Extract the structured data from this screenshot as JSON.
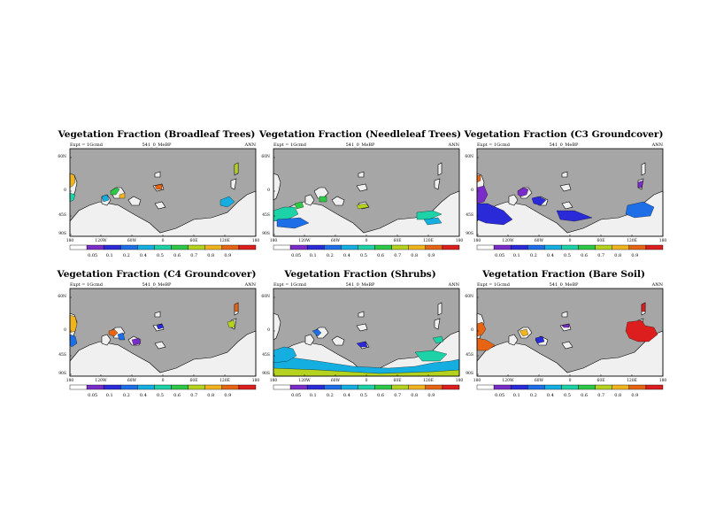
{
  "chart_data": [
    {
      "type": "heatmap",
      "title": "Vegetation Fraction (Broadleaf Trees)",
      "left_label": "Expt = 1Gcmd",
      "center_label": "541_0_MeBP",
      "right_label": "ANN",
      "lat_ticks": [
        "60N",
        "0",
        "45S",
        "90S"
      ],
      "lon_ticks": [
        "180",
        "120W",
        "60W",
        "0",
        "60E",
        "120E",
        "180"
      ],
      "colorbar": [
        "0.05",
        "0.1",
        "0.2",
        "0.4",
        "0.5",
        "0.6",
        "0.7",
        "0.8",
        "0.9"
      ]
    },
    {
      "type": "heatmap",
      "title": "Vegetation Fraction (Needleleaf Trees)",
      "left_label": "Expt = 1Gcmd",
      "center_label": "541_0_MeBP",
      "right_label": "ANN",
      "lat_ticks": [
        "60N",
        "0",
        "45S",
        "90S"
      ],
      "lon_ticks": [
        "180",
        "120W",
        "60W",
        "0",
        "60E",
        "120E",
        "180"
      ],
      "colorbar": [
        "0.05",
        "0.1",
        "0.2",
        "0.4",
        "0.5",
        "0.6",
        "0.7",
        "0.8",
        "0.9"
      ]
    },
    {
      "type": "heatmap",
      "title": "Vegetation Fraction (C3 Groundcover)",
      "left_label": "Expt = 1Gcmd",
      "center_label": "541_0_MeBP",
      "right_label": "ANN",
      "lat_ticks": [
        "60N",
        "0",
        "45S",
        "90S"
      ],
      "lon_ticks": [
        "180",
        "120W",
        "60W",
        "0",
        "60E",
        "120E",
        "180"
      ],
      "colorbar": [
        "0.05",
        "0.1",
        "0.2",
        "0.4",
        "0.5",
        "0.6",
        "0.7",
        "0.8",
        "0.9"
      ]
    },
    {
      "type": "heatmap",
      "title": "Vegetation Fraction (C4 Groundcover)",
      "left_label": "Expt = 1Gcmd",
      "center_label": "541_0_MeBP",
      "right_label": "ANN",
      "lat_ticks": [
        "60N",
        "0",
        "45S",
        "90S"
      ],
      "lon_ticks": [
        "180",
        "120W",
        "60W",
        "0",
        "60E",
        "120E",
        "180"
      ],
      "colorbar": [
        "0.05",
        "0.1",
        "0.2",
        "0.4",
        "0.5",
        "0.6",
        "0.7",
        "0.8",
        "0.9"
      ]
    },
    {
      "type": "heatmap",
      "title": "Vegetation Fraction (Shrubs)",
      "left_label": "Expt = 1Gcmd",
      "center_label": "541_0_MeBP",
      "right_label": "ANN",
      "lat_ticks": [
        "60N",
        "0",
        "45S",
        "90S"
      ],
      "lon_ticks": [
        "180",
        "120W",
        "60W",
        "0",
        "60E",
        "120E",
        "180"
      ],
      "colorbar": [
        "0.05",
        "0.1",
        "0.2",
        "0.4",
        "0.5",
        "0.6",
        "0.7",
        "0.8",
        "0.9"
      ]
    },
    {
      "type": "heatmap",
      "title": "Vegetation Fraction (Bare Soil)",
      "left_label": "Expt = 1Gcmd",
      "center_label": "541_0_MeBP",
      "right_label": "ANN",
      "lat_ticks": [
        "60N",
        "0",
        "45S",
        "90S"
      ],
      "lon_ticks": [
        "180",
        "120W",
        "60W",
        "0",
        "60E",
        "120E",
        "180"
      ],
      "colorbar": [
        "0.05",
        "0.1",
        "0.2",
        "0.4",
        "0.5",
        "0.6",
        "0.7",
        "0.8",
        "0.9"
      ]
    }
  ],
  "colors": {
    "ocean": "#a6a6a6",
    "land": "#f0f0f0",
    "scale": [
      "#ffffff",
      "#7a2cc8",
      "#2a2ad8",
      "#1e6ee8",
      "#14aee0",
      "#1ed2a8",
      "#2cc846",
      "#b4d21e",
      "#f0b41e",
      "#e66414",
      "#dc1e1e"
    ]
  }
}
